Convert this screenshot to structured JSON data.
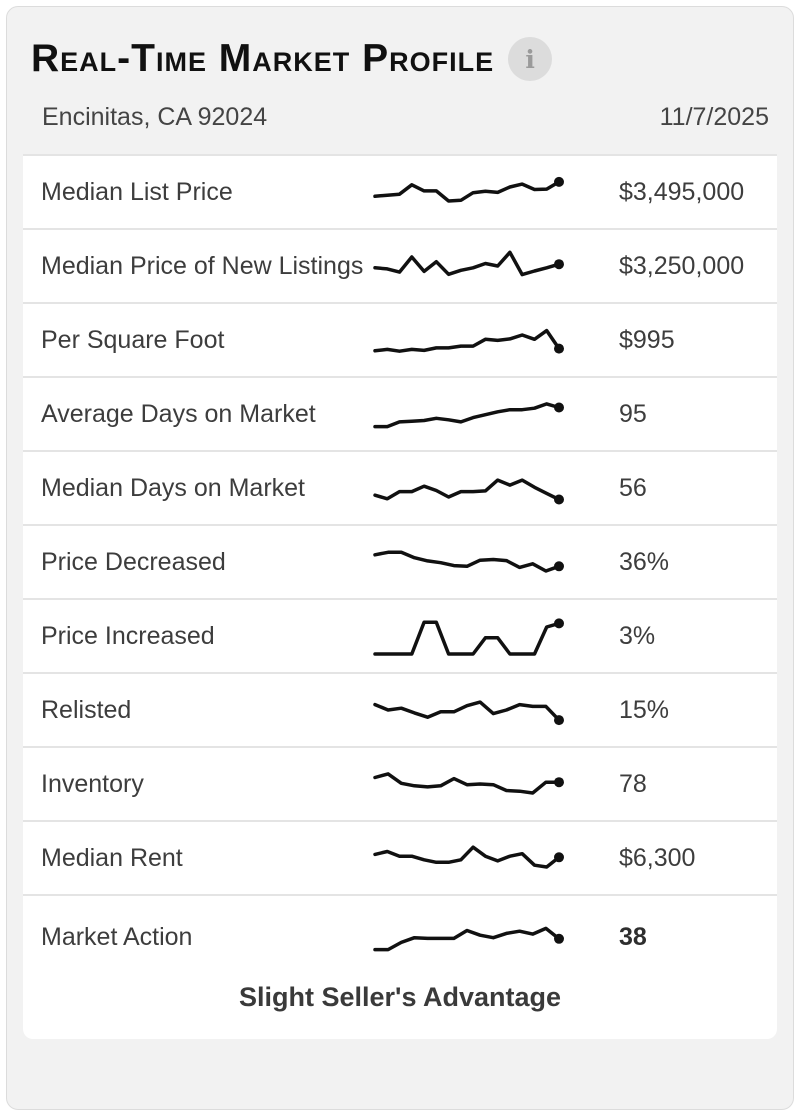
{
  "header": {
    "title": "Real-Time Market Profile",
    "info_icon": "i"
  },
  "subheader": {
    "location": "Encinitas, CA 92024",
    "date": "11/7/2025"
  },
  "rows": [
    {
      "label": "Median List Price",
      "value": "$3,495,000"
    },
    {
      "label": "Median Price of New Listings",
      "value": "$3,250,000"
    },
    {
      "label": "Per Square Foot",
      "value": "$995"
    },
    {
      "label": "Average Days on Market",
      "value": "95"
    },
    {
      "label": "Median Days on Market",
      "value": "56"
    },
    {
      "label": "Price Decreased",
      "value": "36%"
    },
    {
      "label": "Price Increased",
      "value": "3%"
    },
    {
      "label": "Relisted",
      "value": "15%"
    },
    {
      "label": "Inventory",
      "value": "78"
    },
    {
      "label": "Median Rent",
      "value": "$6,300"
    },
    {
      "label": "Market Action",
      "value": "38"
    }
  ],
  "footer": {
    "market_status": "Slight Seller's Advantage"
  },
  "colors": {
    "card_bg": "#f2f2f2",
    "card_border": "#dcdcdc",
    "row_bg": "#ffffff",
    "divider": "#e4e4e4",
    "text": "#3d3d3d",
    "title": "#111111",
    "sparkline": "#111111",
    "info_circle_bg": "#dcdcdc",
    "info_glyph": "#9a9a9a"
  },
  "chart_data": {
    "type": "line",
    "title": "Real-Time Market Profile sparklines",
    "note": "Unlabeled sparkline trend mini-charts, one per metric row; values are normalized 0-100 estimates of line height, last point marked with a dot. No axes, no gridlines, no legend.",
    "series": [
      {
        "name": "Median List Price",
        "current": "$3,495,000",
        "values": [
          38,
          41,
          44,
          70,
          53,
          53,
          25,
          27,
          48,
          52,
          49,
          64,
          72,
          57,
          58,
          78
        ]
      },
      {
        "name": "Median Price of New Listings",
        "current": "$3,250,000",
        "values": [
          45,
          42,
          33,
          75,
          35,
          62,
          27,
          38,
          45,
          57,
          50,
          88,
          26,
          36,
          45,
          55
        ]
      },
      {
        "name": "Per Square Foot",
        "current": "$995",
        "values": [
          20,
          24,
          19,
          24,
          21,
          28,
          28,
          33,
          33,
          52,
          49,
          53,
          64,
          52,
          76,
          26
        ]
      },
      {
        "name": "Average Days on Market",
        "current": "95",
        "values": [
          15,
          15,
          28,
          30,
          32,
          38,
          34,
          28,
          40,
          48,
          56,
          62,
          62,
          66,
          78,
          68
        ]
      },
      {
        "name": "Median Days on Market",
        "current": "56",
        "values": [
          30,
          20,
          40,
          40,
          55,
          43,
          25,
          40,
          40,
          42,
          72,
          58,
          72,
          52,
          35,
          18
        ]
      },
      {
        "name": "Price Decreased",
        "current": "36%",
        "values": [
          70,
          77,
          77,
          62,
          53,
          48,
          40,
          38,
          55,
          57,
          54,
          35,
          45,
          25,
          38
        ]
      },
      {
        "name": "Price Increased",
        "current": "3%",
        "values": [
          0,
          0,
          0,
          0,
          88,
          88,
          0,
          0,
          0,
          45,
          45,
          0,
          0,
          0,
          75,
          85
        ]
      },
      {
        "name": "Relisted",
        "current": "15%",
        "values": [
          65,
          50,
          55,
          42,
          30,
          45,
          45,
          62,
          72,
          40,
          50,
          65,
          60,
          60,
          22
        ]
      },
      {
        "name": "Inventory",
        "current": "78",
        "values": [
          68,
          78,
          52,
          45,
          42,
          45,
          65,
          48,
          50,
          48,
          32,
          30,
          25,
          55,
          55
        ]
      },
      {
        "name": "Median Rent",
        "current": "$6,300",
        "values": [
          60,
          68,
          55,
          55,
          45,
          38,
          38,
          45,
          80,
          55,
          42,
          55,
          62,
          30,
          25,
          52
        ]
      },
      {
        "name": "Market Action",
        "current": "38",
        "values": [
          15,
          15,
          35,
          48,
          46,
          46,
          46,
          68,
          55,
          48,
          60,
          66,
          58,
          74,
          45
        ]
      }
    ]
  }
}
